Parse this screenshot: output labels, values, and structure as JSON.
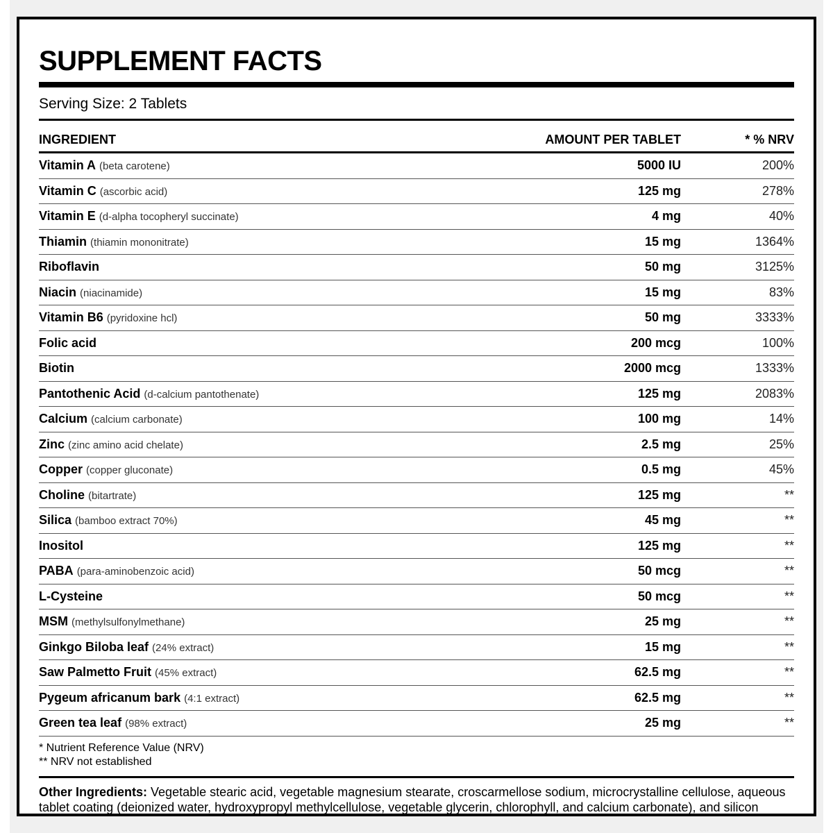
{
  "title": "SUPPLEMENT FACTS",
  "serving_size": "Serving Size: 2 Tablets",
  "headers": {
    "ingredient": "INGREDIENT",
    "amount": "AMOUNT PER TABLET",
    "nrv": "* % NRV"
  },
  "rows": [
    {
      "name": "Vitamin A",
      "detail": "(beta carotene)",
      "amount": "5000 IU",
      "nrv": "200%"
    },
    {
      "name": "Vitamin C",
      "detail": "(ascorbic acid)",
      "amount": "125 mg",
      "nrv": "278%"
    },
    {
      "name": "Vitamin E",
      "detail": "(d-alpha tocopheryl succinate)",
      "amount": "4 mg",
      "nrv": "40%"
    },
    {
      "name": "Thiamin",
      "detail": "(thiamin mononitrate)",
      "amount": "15 mg",
      "nrv": "1364%"
    },
    {
      "name": "Riboflavin",
      "detail": "",
      "amount": "50 mg",
      "nrv": "3125%"
    },
    {
      "name": "Niacin",
      "detail": "(niacinamide)",
      "amount": "15 mg",
      "nrv": "83%"
    },
    {
      "name": "Vitamin B6",
      "detail": "(pyridoxine hcl)",
      "amount": "50 mg",
      "nrv": "3333%"
    },
    {
      "name": "Folic acid",
      "detail": "",
      "amount": "200 mcg",
      "nrv": "100%"
    },
    {
      "name": "Biotin",
      "detail": "",
      "amount": "2000 mcg",
      "nrv": "1333%"
    },
    {
      "name": "Pantothenic Acid",
      "detail": "(d-calcium pantothenate)",
      "amount": "125 mg",
      "nrv": "2083%"
    },
    {
      "name": "Calcium",
      "detail": "(calcium carbonate)",
      "amount": "100 mg",
      "nrv": "14%"
    },
    {
      "name": "Zinc",
      "detail": "(zinc amino acid chelate)",
      "amount": "2.5 mg",
      "nrv": "25%"
    },
    {
      "name": "Copper",
      "detail": "(copper gluconate)",
      "amount": "0.5 mg",
      "nrv": "45%"
    },
    {
      "name": "Choline",
      "detail": "(bitartrate)",
      "amount": "125 mg",
      "nrv": "**"
    },
    {
      "name": "Silica",
      "detail": "(bamboo extract 70%)",
      "amount": "45 mg",
      "nrv": "**"
    },
    {
      "name": "Inositol",
      "detail": "",
      "amount": "125 mg",
      "nrv": "**"
    },
    {
      "name": "PABA",
      "detail": "(para-aminobenzoic acid)",
      "amount": "50 mcg",
      "nrv": "**"
    },
    {
      "name": "L-Cysteine",
      "detail": "",
      "amount": "50 mcg",
      "nrv": "**"
    },
    {
      "name": "MSM",
      "detail": "(methylsulfonylmethane)",
      "amount": "25 mg",
      "nrv": "**"
    },
    {
      "name": "Ginkgo Biloba leaf",
      "detail": "(24% extract)",
      "amount": "15 mg",
      "nrv": "**"
    },
    {
      "name": "Saw Palmetto Fruit",
      "detail": "(45% extract)",
      "amount": "62.5 mg",
      "nrv": "**"
    },
    {
      "name": "Pygeum africanum bark",
      "detail": "(4:1 extract)",
      "amount": "62.5 mg",
      "nrv": "**"
    },
    {
      "name": "Green tea leaf",
      "detail": "(98% extract)",
      "amount": "25 mg",
      "nrv": "**"
    }
  ],
  "footnotes": [
    "* Nutrient Reference Value (NRV)",
    "** NRV not established"
  ],
  "other_ingredients": {
    "label": "Other Ingredients:",
    "text": "Vegetable stearic acid, vegetable magnesium stearate, croscarmellose sodium, microcrystalline cellulose, aqueous tablet coating (deionized water, hydroxypropyl methylcellulose, vegetable glycerin, chlorophyll, and calcium carbonate), and silicon dioxide."
  }
}
